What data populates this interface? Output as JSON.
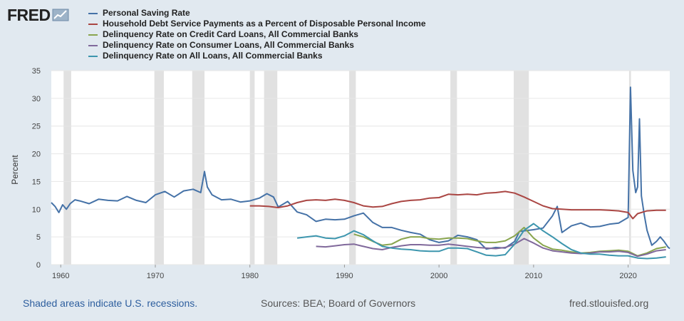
{
  "brand": {
    "name": "FRED"
  },
  "colors": {
    "saving": "#4572a7",
    "debt": "#aa4643",
    "credit": "#89a54e",
    "consumer": "#80699b",
    "all": "#3d96ae",
    "recession": "#e1e1e1"
  },
  "chart_data": {
    "type": "line",
    "title": "",
    "xlabel": "",
    "ylabel": "Percent",
    "xlim": [
      1959,
      2024.4
    ],
    "ylim": [
      0,
      35
    ],
    "y_ticks": [
      0,
      5,
      10,
      15,
      20,
      25,
      30,
      35
    ],
    "x_ticks": [
      1960,
      1970,
      1980,
      1990,
      2000,
      2010,
      2020
    ],
    "grid": true,
    "legend_position": "top-left",
    "recessions": [
      [
        1960.3,
        1961.1
      ],
      [
        1969.9,
        1970.9
      ],
      [
        1973.9,
        1975.2
      ],
      [
        1980.0,
        1980.5
      ],
      [
        1981.5,
        1982.9
      ],
      [
        1990.5,
        1991.2
      ],
      [
        2001.2,
        2001.9
      ],
      [
        2007.9,
        2009.5
      ],
      [
        2020.1,
        2020.3
      ]
    ],
    "series": [
      {
        "name": "Personal Saving Rate",
        "color": "#4572a7",
        "points": [
          [
            1959.0,
            11.2
          ],
          [
            1959.4,
            10.5
          ],
          [
            1959.8,
            9.4
          ],
          [
            1960.2,
            10.8
          ],
          [
            1960.6,
            10.0
          ],
          [
            1961.0,
            11.0
          ],
          [
            1961.5,
            11.7
          ],
          [
            1962.0,
            11.5
          ],
          [
            1963.0,
            11.0
          ],
          [
            1964.0,
            11.8
          ],
          [
            1965.0,
            11.6
          ],
          [
            1966.0,
            11.5
          ],
          [
            1967.0,
            12.3
          ],
          [
            1968.0,
            11.6
          ],
          [
            1969.0,
            11.2
          ],
          [
            1970.0,
            12.6
          ],
          [
            1971.0,
            13.2
          ],
          [
            1972.0,
            12.2
          ],
          [
            1973.0,
            13.3
          ],
          [
            1974.0,
            13.6
          ],
          [
            1974.8,
            13.0
          ],
          [
            1975.2,
            16.8
          ],
          [
            1975.5,
            14.0
          ],
          [
            1976.0,
            12.6
          ],
          [
            1977.0,
            11.7
          ],
          [
            1978.0,
            11.8
          ],
          [
            1979.0,
            11.3
          ],
          [
            1980.0,
            11.5
          ],
          [
            1981.0,
            12.0
          ],
          [
            1981.8,
            12.8
          ],
          [
            1982.5,
            12.2
          ],
          [
            1983.0,
            10.4
          ],
          [
            1984.0,
            11.4
          ],
          [
            1985.0,
            9.5
          ],
          [
            1986.0,
            9.0
          ],
          [
            1987.0,
            7.8
          ],
          [
            1988.0,
            8.2
          ],
          [
            1989.0,
            8.1
          ],
          [
            1990.0,
            8.2
          ],
          [
            1991.0,
            8.8
          ],
          [
            1992.0,
            9.3
          ],
          [
            1993.0,
            7.6
          ],
          [
            1994.0,
            6.7
          ],
          [
            1995.0,
            6.7
          ],
          [
            1996.0,
            6.2
          ],
          [
            1997.0,
            5.8
          ],
          [
            1998.0,
            5.5
          ],
          [
            1999.0,
            4.5
          ],
          [
            2000.0,
            4.0
          ],
          [
            2001.0,
            4.3
          ],
          [
            2002.0,
            5.3
          ],
          [
            2003.0,
            5.0
          ],
          [
            2004.0,
            4.5
          ],
          [
            2005.0,
            2.8
          ],
          [
            2006.0,
            3.1
          ],
          [
            2007.0,
            3.0
          ],
          [
            2008.0,
            4.2
          ],
          [
            2008.5,
            6.0
          ],
          [
            2009.0,
            6.1
          ],
          [
            2010.0,
            6.3
          ],
          [
            2011.0,
            6.6
          ],
          [
            2012.0,
            8.8
          ],
          [
            2012.5,
            10.5
          ],
          [
            2013.0,
            5.8
          ],
          [
            2014.0,
            7.0
          ],
          [
            2015.0,
            7.5
          ],
          [
            2016.0,
            6.8
          ],
          [
            2017.0,
            6.9
          ],
          [
            2018.0,
            7.3
          ],
          [
            2019.0,
            7.5
          ],
          [
            2020.0,
            8.5
          ],
          [
            2020.25,
            32.0
          ],
          [
            2020.5,
            17.0
          ],
          [
            2020.8,
            13.0
          ],
          [
            2021.0,
            14.0
          ],
          [
            2021.2,
            26.3
          ],
          [
            2021.4,
            12.4
          ],
          [
            2021.7,
            9.0
          ],
          [
            2022.0,
            6.2
          ],
          [
            2022.5,
            3.5
          ],
          [
            2023.0,
            4.2
          ],
          [
            2023.4,
            5.0
          ],
          [
            2023.8,
            4.2
          ],
          [
            2024.2,
            3.2
          ],
          [
            2024.4,
            2.9
          ]
        ]
      },
      {
        "name": "Household Debt Service Payments as a Percent of Disposable Personal Income",
        "color": "#aa4643",
        "points": [
          [
            1980.0,
            10.6
          ],
          [
            1981.0,
            10.6
          ],
          [
            1982.0,
            10.5
          ],
          [
            1983.0,
            10.3
          ],
          [
            1984.0,
            10.6
          ],
          [
            1985.0,
            11.2
          ],
          [
            1986.0,
            11.6
          ],
          [
            1987.0,
            11.7
          ],
          [
            1988.0,
            11.6
          ],
          [
            1989.0,
            11.8
          ],
          [
            1990.0,
            11.6
          ],
          [
            1991.0,
            11.2
          ],
          [
            1992.0,
            10.6
          ],
          [
            1993.0,
            10.4
          ],
          [
            1994.0,
            10.5
          ],
          [
            1995.0,
            11.0
          ],
          [
            1996.0,
            11.4
          ],
          [
            1997.0,
            11.6
          ],
          [
            1998.0,
            11.7
          ],
          [
            1999.0,
            12.0
          ],
          [
            2000.0,
            12.1
          ],
          [
            2001.0,
            12.7
          ],
          [
            2002.0,
            12.6
          ],
          [
            2003.0,
            12.7
          ],
          [
            2004.0,
            12.6
          ],
          [
            2005.0,
            12.9
          ],
          [
            2006.0,
            13.0
          ],
          [
            2007.0,
            13.2
          ],
          [
            2008.0,
            12.9
          ],
          [
            2009.0,
            12.2
          ],
          [
            2010.0,
            11.4
          ],
          [
            2011.0,
            10.6
          ],
          [
            2012.0,
            10.1
          ],
          [
            2013.0,
            10.0
          ],
          [
            2014.0,
            9.9
          ],
          [
            2015.0,
            9.9
          ],
          [
            2016.0,
            9.9
          ],
          [
            2017.0,
            9.9
          ],
          [
            2018.0,
            9.8
          ],
          [
            2019.0,
            9.7
          ],
          [
            2020.0,
            9.4
          ],
          [
            2020.5,
            8.3
          ],
          [
            2021.0,
            9.2
          ],
          [
            2022.0,
            9.7
          ],
          [
            2023.0,
            9.8
          ],
          [
            2024.0,
            9.8
          ]
        ]
      },
      {
        "name": "Delinquency Rate on Credit Card Loans, All Commercial Banks",
        "color": "#89a54e",
        "points": [
          [
            1991.0,
            5.5
          ],
          [
            1992.0,
            5.0
          ],
          [
            1993.0,
            4.2
          ],
          [
            1994.0,
            3.5
          ],
          [
            1995.0,
            3.7
          ],
          [
            1996.0,
            4.6
          ],
          [
            1997.0,
            5.0
          ],
          [
            1998.0,
            5.0
          ],
          [
            1999.0,
            4.7
          ],
          [
            2000.0,
            4.6
          ],
          [
            2001.0,
            4.8
          ],
          [
            2002.0,
            4.8
          ],
          [
            2003.0,
            4.7
          ],
          [
            2004.0,
            4.3
          ],
          [
            2005.0,
            4.0
          ],
          [
            2006.0,
            4.0
          ],
          [
            2007.0,
            4.3
          ],
          [
            2008.0,
            5.2
          ],
          [
            2009.0,
            6.7
          ],
          [
            2010.0,
            4.8
          ],
          [
            2011.0,
            3.5
          ],
          [
            2012.0,
            2.8
          ],
          [
            2013.0,
            2.6
          ],
          [
            2014.0,
            2.3
          ],
          [
            2015.0,
            2.1
          ],
          [
            2016.0,
            2.2
          ],
          [
            2017.0,
            2.4
          ],
          [
            2018.0,
            2.5
          ],
          [
            2019.0,
            2.6
          ],
          [
            2020.0,
            2.4
          ],
          [
            2021.0,
            1.6
          ],
          [
            2022.0,
            2.1
          ],
          [
            2023.0,
            2.9
          ],
          [
            2024.0,
            3.2
          ]
        ]
      },
      {
        "name": "Delinquency Rate on Consumer Loans, All Commercial Banks",
        "color": "#80699b",
        "points": [
          [
            1987.0,
            3.3
          ],
          [
            1988.0,
            3.2
          ],
          [
            1989.0,
            3.4
          ],
          [
            1990.0,
            3.6
          ],
          [
            1991.0,
            3.7
          ],
          [
            1992.0,
            3.3
          ],
          [
            1993.0,
            2.9
          ],
          [
            1994.0,
            2.7
          ],
          [
            1995.0,
            3.1
          ],
          [
            1996.0,
            3.4
          ],
          [
            1997.0,
            3.6
          ],
          [
            1998.0,
            3.6
          ],
          [
            1999.0,
            3.5
          ],
          [
            2000.0,
            3.5
          ],
          [
            2001.0,
            3.7
          ],
          [
            2002.0,
            3.5
          ],
          [
            2003.0,
            3.3
          ],
          [
            2004.0,
            3.1
          ],
          [
            2005.0,
            3.0
          ],
          [
            2006.0,
            2.9
          ],
          [
            2007.0,
            3.1
          ],
          [
            2008.0,
            3.7
          ],
          [
            2009.0,
            4.7
          ],
          [
            2010.0,
            3.9
          ],
          [
            2011.0,
            3.0
          ],
          [
            2012.0,
            2.5
          ],
          [
            2013.0,
            2.3
          ],
          [
            2014.0,
            2.1
          ],
          [
            2015.0,
            2.0
          ],
          [
            2016.0,
            2.1
          ],
          [
            2017.0,
            2.3
          ],
          [
            2018.0,
            2.3
          ],
          [
            2019.0,
            2.4
          ],
          [
            2020.0,
            2.2
          ],
          [
            2021.0,
            1.5
          ],
          [
            2022.0,
            1.9
          ],
          [
            2023.0,
            2.5
          ],
          [
            2024.0,
            2.7
          ]
        ]
      },
      {
        "name": "Delinquency Rate on All Loans, All Commercial Banks",
        "color": "#3d96ae",
        "points": [
          [
            1985.0,
            4.8
          ],
          [
            1986.0,
            5.0
          ],
          [
            1987.0,
            5.2
          ],
          [
            1988.0,
            4.8
          ],
          [
            1989.0,
            4.7
          ],
          [
            1990.0,
            5.2
          ],
          [
            1991.0,
            6.1
          ],
          [
            1992.0,
            5.4
          ],
          [
            1993.0,
            4.3
          ],
          [
            1994.0,
            3.3
          ],
          [
            1995.0,
            3.0
          ],
          [
            1996.0,
            2.8
          ],
          [
            1997.0,
            2.7
          ],
          [
            1998.0,
            2.5
          ],
          [
            1999.0,
            2.4
          ],
          [
            2000.0,
            2.4
          ],
          [
            2001.0,
            3.0
          ],
          [
            2002.0,
            3.0
          ],
          [
            2003.0,
            2.9
          ],
          [
            2004.0,
            2.3
          ],
          [
            2005.0,
            1.7
          ],
          [
            2006.0,
            1.6
          ],
          [
            2007.0,
            1.8
          ],
          [
            2008.0,
            3.7
          ],
          [
            2009.0,
            6.2
          ],
          [
            2010.0,
            7.4
          ],
          [
            2011.0,
            6.1
          ],
          [
            2012.0,
            5.0
          ],
          [
            2013.0,
            3.8
          ],
          [
            2014.0,
            2.7
          ],
          [
            2015.0,
            2.1
          ],
          [
            2016.0,
            1.9
          ],
          [
            2017.0,
            1.9
          ],
          [
            2018.0,
            1.7
          ],
          [
            2019.0,
            1.6
          ],
          [
            2020.0,
            1.6
          ],
          [
            2021.0,
            1.2
          ],
          [
            2022.0,
            1.1
          ],
          [
            2023.0,
            1.2
          ],
          [
            2024.0,
            1.4
          ]
        ]
      }
    ]
  },
  "footer": {
    "note": "Shaded areas indicate U.S. recessions.",
    "sources": "Sources: BEA; Board of Governors",
    "site": "fred.stlouisfed.org"
  }
}
